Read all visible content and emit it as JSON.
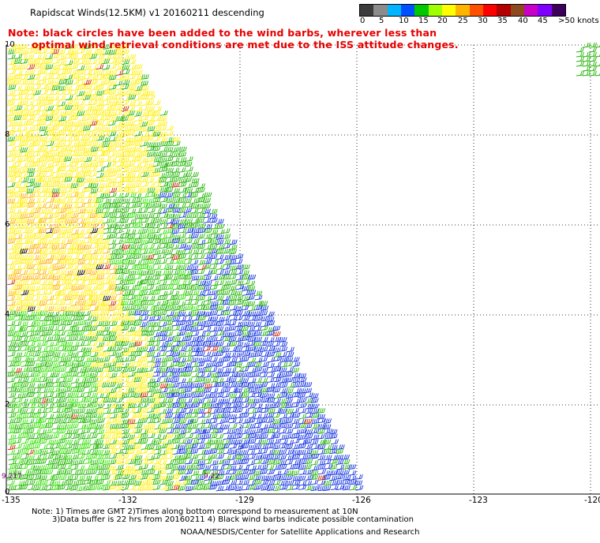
{
  "header": {
    "title": "Rapidscat Winds(12.5KM) v1 20160211 descending",
    "note_line1": "Note: black circles have been added to the wind barbs, wherever less than",
    "note_line2": "optimal wind retrieval conditions are met due to the ISS attitude changes."
  },
  "colorbar": {
    "colors": [
      "#3c3c3c",
      "#8c8c8c",
      "#00b4ff",
      "#0050ff",
      "#00c800",
      "#a0ff00",
      "#ffff00",
      "#ffb400",
      "#ff5000",
      "#ff0000",
      "#b40000",
      "#8c4a1e",
      "#c800c8",
      "#8000ff",
      "#3c005a"
    ],
    "labels": [
      "0",
      "5",
      "10",
      "15",
      "20",
      "25",
      "30",
      "35",
      "40",
      "45",
      ">50 knots"
    ]
  },
  "axes": {
    "x_ticks": [
      "-135",
      "-132",
      "-129",
      "-126",
      "-123",
      "-120"
    ],
    "y_ticks": [
      "10",
      "8",
      "6",
      "4",
      "2",
      "0"
    ]
  },
  "annotations": {
    "time_left": "9.217",
    "time_mid": "9.22"
  },
  "footer": {
    "line1": "Note: 1) Times are GMT 2)Times along bottom correspond to measurement at 10N",
    "line2": "3)Data buffer is 22 hrs from 20160211 4) Black wind barbs indicate possible contamination",
    "line3": "NOAA/NESDIS/Center for Satellite Applications and Research"
  },
  "map_data": {
    "grid": "dotted",
    "swath_colors": {
      "calm_yellow": "#ffee00",
      "orange": "#ffb000",
      "green": "#1fb400",
      "bright_green": "#30e000",
      "blue": "#1030e0",
      "red": "#d02000",
      "black": "#000000"
    }
  }
}
